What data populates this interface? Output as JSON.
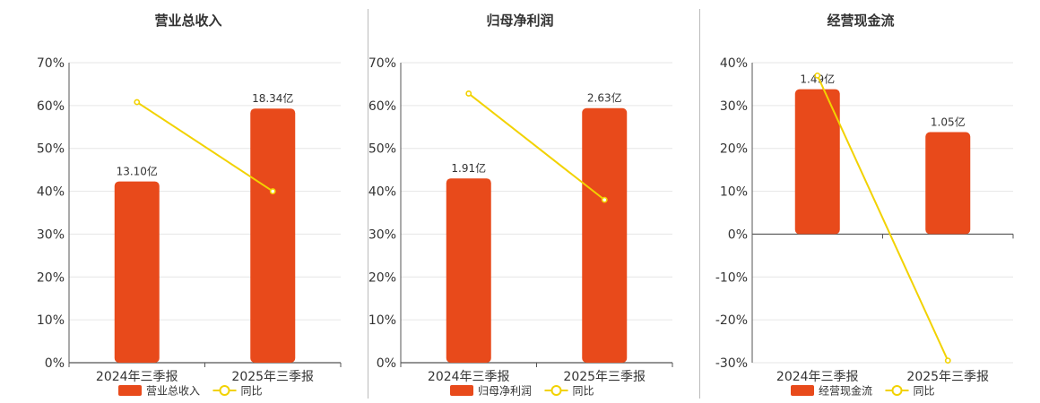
{
  "chart_data": [
    {
      "type": "bar",
      "title": "营业总收入",
      "categories": [
        "2024年三季报",
        "2025年三季报"
      ],
      "series": [
        {
          "name": "营业总收入",
          "type": "bar",
          "values": [
            42.3,
            59.3
          ],
          "data_labels": [
            "13.10亿",
            "18.34亿"
          ],
          "color": "#e84a1b"
        },
        {
          "name": "同比",
          "type": "line",
          "values": [
            60.8,
            40.0
          ],
          "color": "#f2d200"
        }
      ],
      "ylim": [
        0,
        70
      ],
      "yticks": [
        "0%",
        "10%",
        "20%",
        "30%",
        "40%",
        "50%",
        "60%",
        "70%"
      ],
      "grid": true,
      "legend": "bottom"
    },
    {
      "type": "bar",
      "title": "归母净利润",
      "categories": [
        "2024年三季报",
        "2025年三季报"
      ],
      "series": [
        {
          "name": "归母净利润",
          "type": "bar",
          "values": [
            43.0,
            59.4
          ],
          "data_labels": [
            "1.91亿",
            "2.63亿"
          ],
          "color": "#e84a1b"
        },
        {
          "name": "同比",
          "type": "line",
          "values": [
            62.8,
            38.0
          ],
          "color": "#f2d200"
        }
      ],
      "ylim": [
        0,
        70
      ],
      "yticks": [
        "0%",
        "10%",
        "20%",
        "30%",
        "40%",
        "50%",
        "60%",
        "70%"
      ],
      "grid": true,
      "legend": "bottom"
    },
    {
      "type": "bar",
      "title": "经营现金流",
      "categories": [
        "2024年三季报",
        "2025年三季报"
      ],
      "series": [
        {
          "name": "经营现金流",
          "type": "bar",
          "values": [
            33.8,
            23.8
          ],
          "data_labels": [
            "1.49亿",
            "1.05亿"
          ],
          "color": "#e84a1b"
        },
        {
          "name": "同比",
          "type": "line",
          "values": [
            37.0,
            -29.5
          ],
          "color": "#f2d200"
        }
      ],
      "ylim": [
        -30,
        40
      ],
      "yticks": [
        "-30%",
        "-20%",
        "-10%",
        "0%",
        "10%",
        "20%",
        "30%",
        "40%"
      ],
      "grid": true,
      "legend": "bottom"
    }
  ]
}
